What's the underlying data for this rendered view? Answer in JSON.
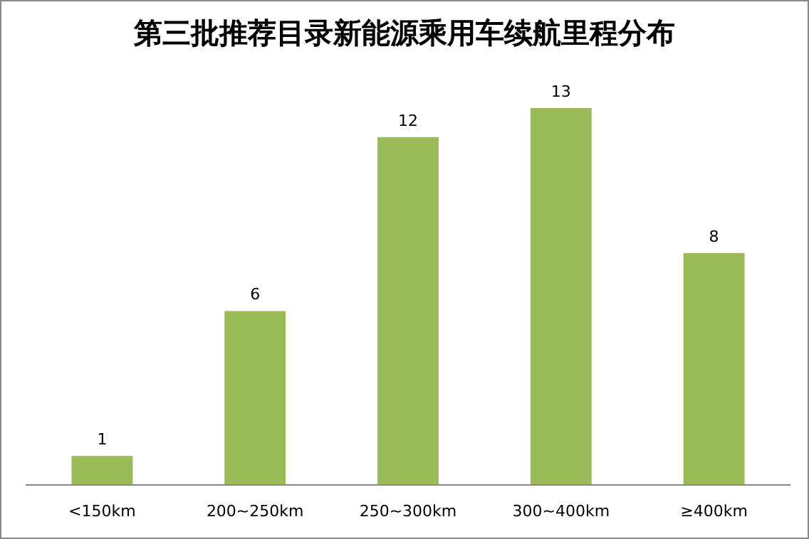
{
  "chart_data": {
    "type": "bar",
    "title": "第三批推荐目录新能源乘用车续航里程分布",
    "categories": [
      "<150km",
      "200~250km",
      "250~300km",
      "300~400km",
      "≥400km"
    ],
    "values": [
      1,
      6,
      12,
      13,
      8
    ],
    "color": "#9bbb59",
    "data_labels": true
  }
}
